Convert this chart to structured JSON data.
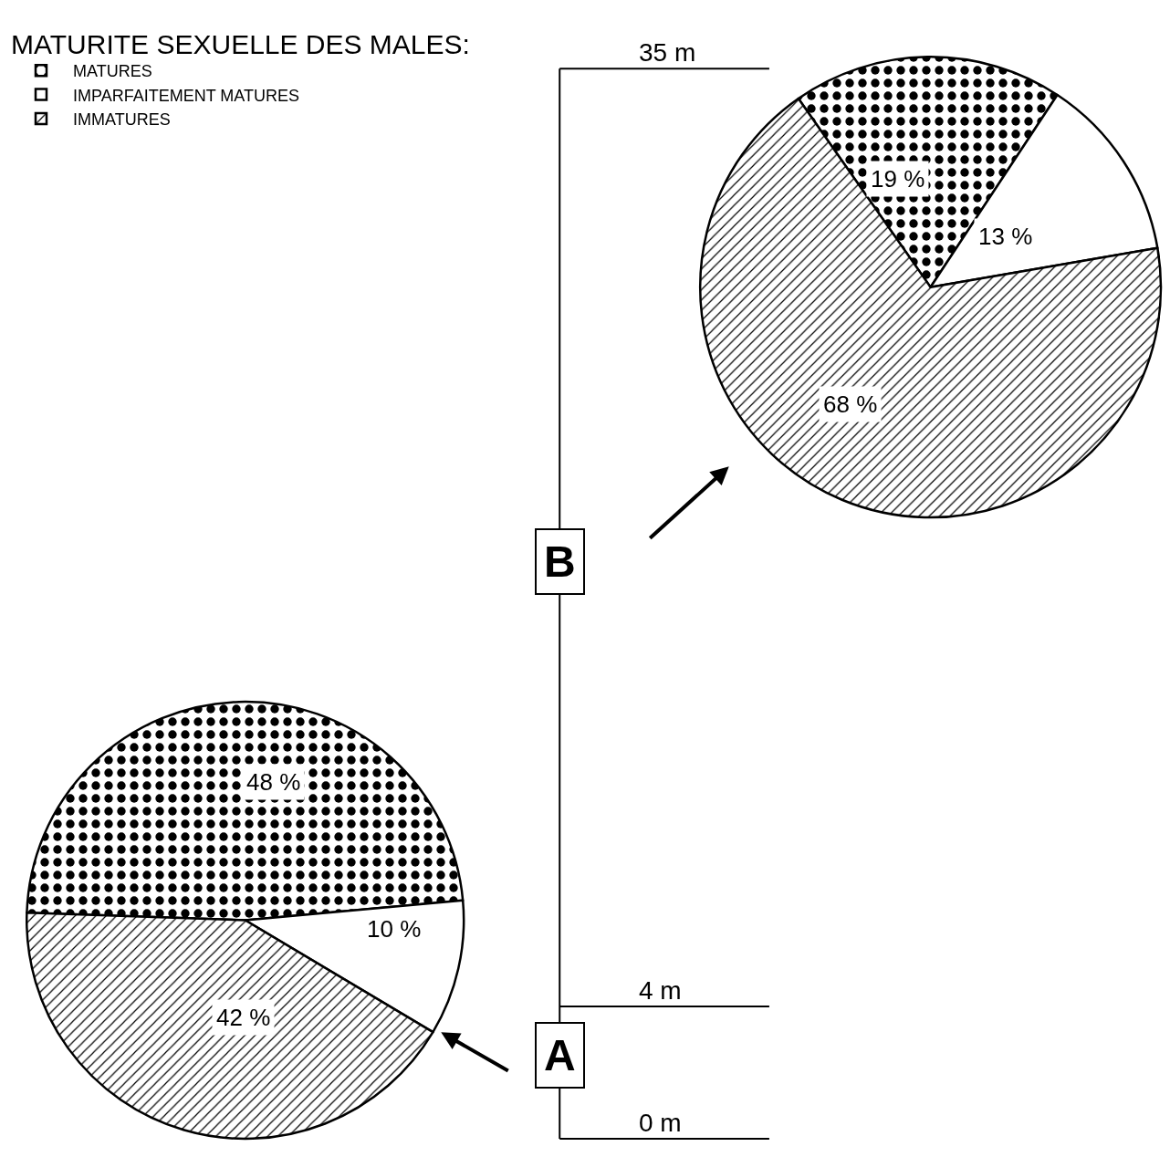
{
  "chart_data": {
    "type": "pie",
    "legend_title": "MATURITE SEXUELLE DES MALES:",
    "legend": "top left",
    "categories": [
      "MATURES",
      "IMPARFAITEMENT MATURES",
      "IMMATURES"
    ],
    "colors": [
      "#000000",
      "#ffffff",
      "#000000"
    ],
    "series": [
      {
        "name": "B",
        "values": [
          19,
          13,
          68
        ],
        "value_labels": [
          "19 %",
          "13 %",
          "68 %"
        ]
      },
      {
        "name": "A",
        "values": [
          48,
          10,
          42
        ],
        "value_labels": [
          "48 %",
          "10 %",
          "42 %"
        ]
      }
    ],
    "annotations": [
      "35 m",
      "4 m",
      "0 m"
    ]
  }
}
